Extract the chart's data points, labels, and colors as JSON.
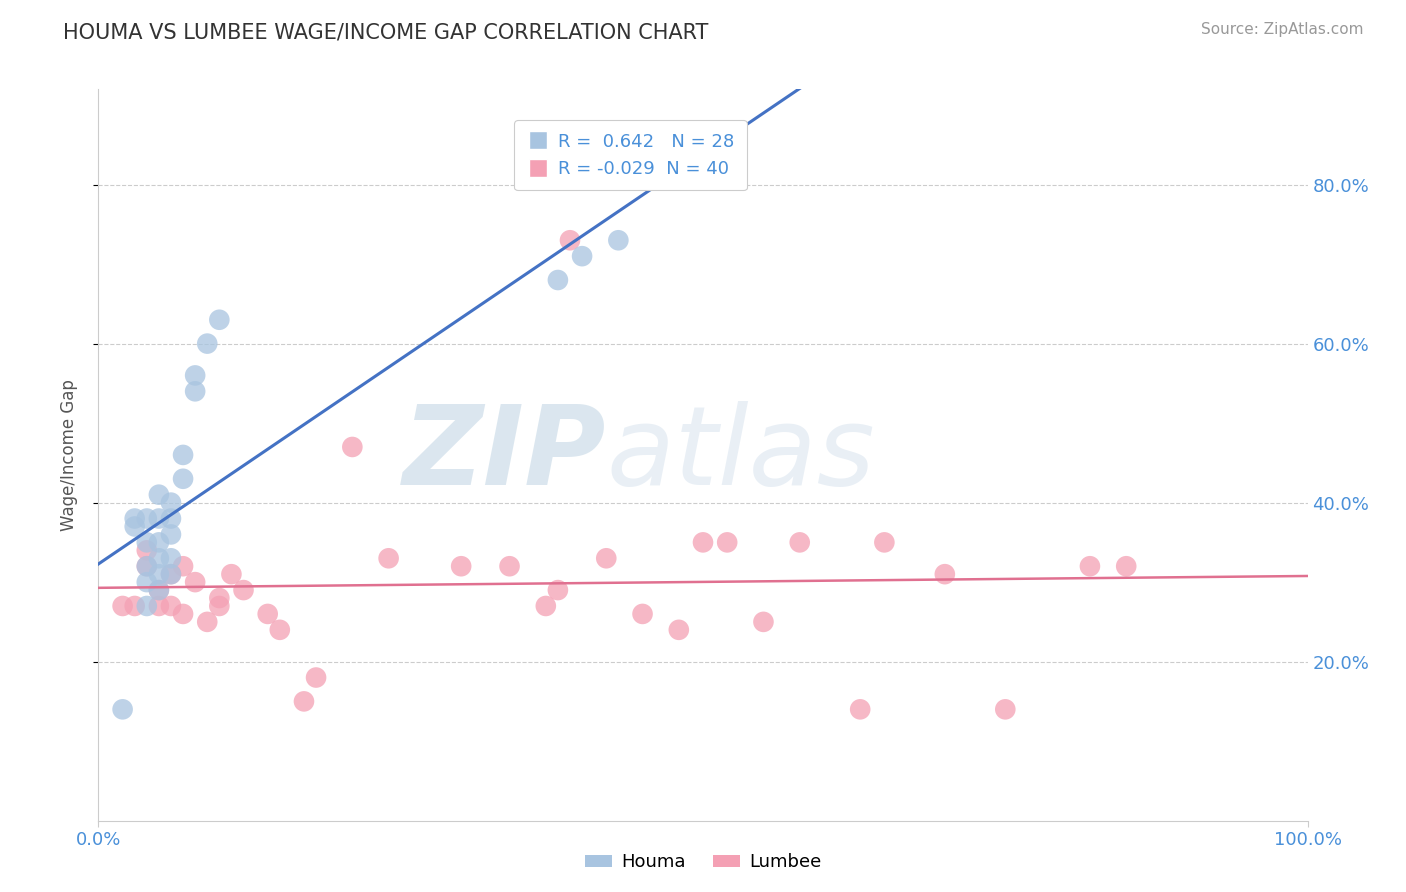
{
  "title": "HOUMA VS LUMBEE WAGE/INCOME GAP CORRELATION CHART",
  "source_text": "Source: ZipAtlas.com",
  "ylabel": "Wage/Income Gap",
  "xlim": [
    0.0,
    1.0
  ],
  "ylim": [
    0.0,
    0.92
  ],
  "ytick_labels": [
    "20.0%",
    "40.0%",
    "60.0%",
    "80.0%"
  ],
  "ytick_positions": [
    0.2,
    0.4,
    0.6,
    0.8
  ],
  "houma_R": 0.642,
  "houma_N": 28,
  "lumbee_R": -0.029,
  "lumbee_N": 40,
  "houma_color": "#a8c4e0",
  "lumbee_color": "#f4a0b4",
  "houma_line_color": "#4472c4",
  "lumbee_line_color": "#e07090",
  "legend_label_houma": "Houma",
  "legend_label_lumbee": "Lumbee",
  "watermark_zip": "ZIP",
  "watermark_atlas": "atlas",
  "background_color": "#ffffff",
  "grid_color": "#cccccc",
  "houma_x": [
    0.02,
    0.03,
    0.03,
    0.04,
    0.04,
    0.04,
    0.04,
    0.04,
    0.05,
    0.05,
    0.05,
    0.05,
    0.05,
    0.05,
    0.06,
    0.06,
    0.06,
    0.06,
    0.06,
    0.07,
    0.07,
    0.08,
    0.08,
    0.09,
    0.1,
    0.38,
    0.4,
    0.43
  ],
  "houma_y": [
    0.14,
    0.37,
    0.38,
    0.27,
    0.3,
    0.32,
    0.35,
    0.38,
    0.29,
    0.31,
    0.33,
    0.35,
    0.38,
    0.41,
    0.31,
    0.33,
    0.36,
    0.38,
    0.4,
    0.43,
    0.46,
    0.54,
    0.56,
    0.6,
    0.63,
    0.68,
    0.71,
    0.73
  ],
  "lumbee_x": [
    0.02,
    0.03,
    0.04,
    0.04,
    0.05,
    0.05,
    0.06,
    0.06,
    0.07,
    0.07,
    0.08,
    0.09,
    0.1,
    0.1,
    0.11,
    0.12,
    0.14,
    0.15,
    0.17,
    0.18,
    0.21,
    0.24,
    0.3,
    0.34,
    0.37,
    0.38,
    0.39,
    0.42,
    0.45,
    0.48,
    0.5,
    0.52,
    0.55,
    0.58,
    0.63,
    0.65,
    0.7,
    0.75,
    0.82,
    0.85
  ],
  "lumbee_y": [
    0.27,
    0.27,
    0.32,
    0.34,
    0.27,
    0.29,
    0.27,
    0.31,
    0.26,
    0.32,
    0.3,
    0.25,
    0.27,
    0.28,
    0.31,
    0.29,
    0.26,
    0.24,
    0.15,
    0.18,
    0.47,
    0.33,
    0.32,
    0.32,
    0.27,
    0.29,
    0.73,
    0.33,
    0.26,
    0.24,
    0.35,
    0.35,
    0.25,
    0.35,
    0.14,
    0.35,
    0.31,
    0.14,
    0.32,
    0.32
  ],
  "title_fontsize": 15,
  "axis_label_fontsize": 12,
  "tick_fontsize": 13,
  "source_fontsize": 11
}
